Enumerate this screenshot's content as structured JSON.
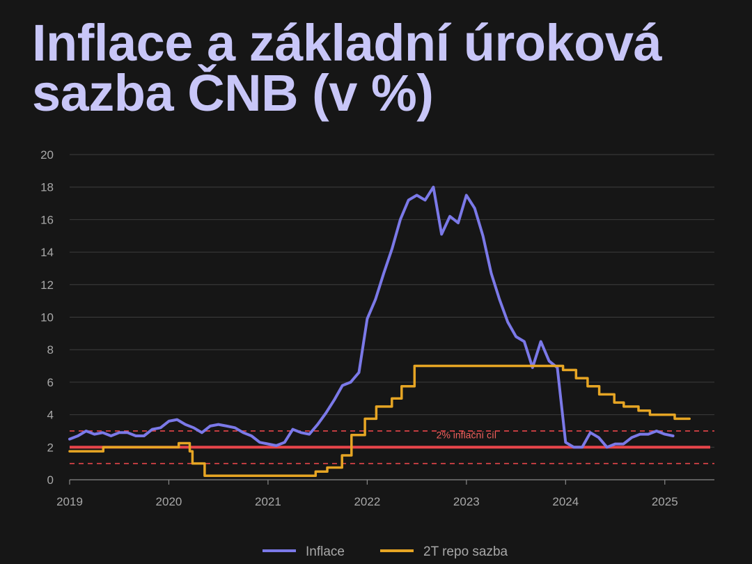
{
  "title": "Inflace a základní úroková sazba ČNB (v %)",
  "chart_data": {
    "type": "line",
    "title": "Inflace a základní úroková sazba ČNB (v %)",
    "xlabel": "",
    "ylabel": "",
    "xlim": [
      2019.0,
      2025.5
    ],
    "ylim": [
      0,
      20
    ],
    "x_ticks": [
      "2019",
      "2020",
      "2021",
      "2022",
      "2023",
      "2024",
      "2025"
    ],
    "y_ticks": [
      0,
      2,
      4,
      6,
      8,
      10,
      12,
      14,
      16,
      18,
      20
    ],
    "grid": true,
    "legend_position": "bottom-center",
    "colors": {
      "background": "#161616",
      "grid": "#3e3e3e",
      "axis": "#8a8a8a",
      "inflation": "#7b79e8",
      "repo": "#e6a524",
      "target": "#e8454a",
      "band": "#e8454a",
      "title": "#c8c6f8"
    },
    "inflation_target": {
      "value": 2,
      "label": "2% inflační cíl",
      "band": [
        1,
        3
      ]
    },
    "series": [
      {
        "name": "Inflace",
        "color": "#7b79e8",
        "step": false,
        "start": "2019-01",
        "values": [
          2.5,
          2.7,
          3.0,
          2.8,
          2.9,
          2.7,
          2.9,
          2.9,
          2.7,
          2.7,
          3.1,
          3.2,
          3.6,
          3.7,
          3.4,
          3.2,
          2.9,
          3.3,
          3.4,
          3.3,
          3.2,
          2.9,
          2.7,
          2.3,
          2.2,
          2.1,
          2.3,
          3.1,
          2.9,
          2.8,
          3.4,
          4.1,
          4.9,
          5.8,
          6.0,
          6.6,
          9.9,
          11.1,
          12.7,
          14.2,
          16.0,
          17.2,
          17.5,
          17.2,
          18.0,
          15.1,
          16.2,
          15.8,
          17.5,
          16.7,
          15.0,
          12.7,
          11.1,
          9.7,
          8.8,
          8.5,
          6.9,
          8.5,
          7.3,
          6.9,
          2.3,
          2.0,
          2.0,
          2.9,
          2.6,
          2.0,
          2.2,
          2.2,
          2.6,
          2.8,
          2.8,
          3.0,
          2.8,
          2.7
        ]
      },
      {
        "name": "2T repo sazba",
        "color": "#e6a524",
        "step": true,
        "points": [
          [
            "2019-01-01",
            1.75
          ],
          [
            "2019-05-03",
            2.0
          ],
          [
            "2020-02-07",
            2.25
          ],
          [
            "2020-03-17",
            1.75
          ],
          [
            "2020-03-27",
            1.0
          ],
          [
            "2020-05-11",
            0.25
          ],
          [
            "2021-06-24",
            0.5
          ],
          [
            "2021-08-06",
            0.75
          ],
          [
            "2021-09-30",
            1.5
          ],
          [
            "2021-11-04",
            2.75
          ],
          [
            "2021-12-23",
            3.75
          ],
          [
            "2022-02-04",
            4.5
          ],
          [
            "2022-03-31",
            5.0
          ],
          [
            "2022-05-06",
            5.75
          ],
          [
            "2022-06-23",
            7.0
          ],
          [
            "2023-12-22",
            6.75
          ],
          [
            "2024-02-09",
            6.25
          ],
          [
            "2024-03-21",
            5.75
          ],
          [
            "2024-05-03",
            5.25
          ],
          [
            "2024-06-28",
            4.75
          ],
          [
            "2024-08-02",
            4.5
          ],
          [
            "2024-09-26",
            4.25
          ],
          [
            "2024-11-07",
            4.0
          ],
          [
            "2025-02-07",
            3.75
          ],
          [
            "2025-03-31",
            3.75
          ]
        ]
      }
    ]
  }
}
